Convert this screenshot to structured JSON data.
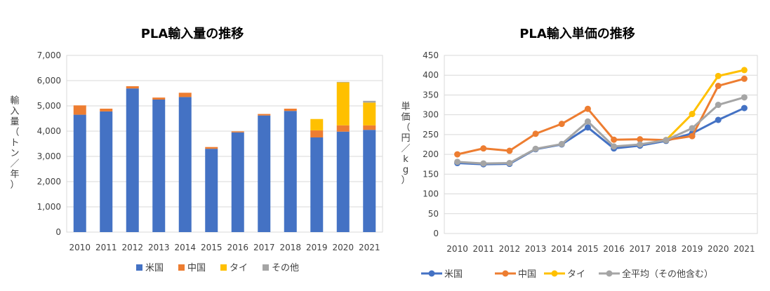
{
  "charts": {
    "left": {
      "type": "bar",
      "title": "PLA輸入量の推移",
      "ylabel": "輸入量（トン／年）",
      "categories": [
        "2010",
        "2011",
        "2012",
        "2013",
        "2014",
        "2015",
        "2016",
        "2017",
        "2018",
        "2019",
        "2020",
        "2021"
      ],
      "ylim": [
        0,
        7000
      ],
      "yticks": [
        "0",
        "1,000",
        "2,000",
        "3,000",
        "4,000",
        "5,000",
        "6,000",
        "7,000"
      ],
      "grid": true,
      "stacked": true,
      "legend_position": "bottom",
      "series": [
        {
          "name": "米国",
          "color": "#4472C4",
          "values": [
            4650,
            4780,
            5690,
            5250,
            5350,
            3300,
            3950,
            4620,
            4800,
            3750,
            3980,
            4050
          ]
        },
        {
          "name": "中国",
          "color": "#ED7D31",
          "values": [
            370,
            110,
            90,
            80,
            170,
            70,
            40,
            60,
            90,
            280,
            250,
            180
          ]
        },
        {
          "name": "タイ",
          "color": "#FFC000",
          "values": [
            0,
            0,
            0,
            0,
            0,
            0,
            0,
            0,
            0,
            450,
            1700,
            900
          ]
        },
        {
          "name": "その他",
          "color": "#A5A5A5",
          "values": [
            0,
            0,
            0,
            0,
            0,
            0,
            0,
            0,
            0,
            0,
            20,
            70
          ]
        }
      ]
    },
    "right": {
      "type": "line",
      "title": "PLA輸入単価の推移",
      "ylabel": "単価（円／kg）",
      "categories": [
        "2010",
        "2011",
        "2012",
        "2013",
        "2014",
        "2015",
        "2016",
        "2017",
        "2018",
        "2019",
        "2020",
        "2021"
      ],
      "ylim": [
        0,
        450
      ],
      "yticks": [
        "0",
        "50",
        "100",
        "150",
        "200",
        "250",
        "300",
        "350",
        "400",
        "450"
      ],
      "grid": true,
      "legend_position": "bottom",
      "series": [
        {
          "name": "米国",
          "color": "#4472C4",
          "values": [
            178,
            175,
            176,
            213,
            225,
            268,
            215,
            222,
            234,
            253,
            287,
            317
          ]
        },
        {
          "name": "中国",
          "color": "#ED7D31",
          "values": [
            200,
            215,
            209,
            252,
            277,
            315,
            237,
            238,
            236,
            246,
            373,
            391
          ]
        },
        {
          "name": "タイ",
          "color": "#FFC000",
          "values": [
            null,
            null,
            null,
            null,
            null,
            null,
            null,
            null,
            236,
            302,
            398,
            413
          ]
        },
        {
          "name": "全平均（その他含む）",
          "color": "#A5A5A5",
          "values": [
            181,
            177,
            178,
            214,
            226,
            283,
            220,
            225,
            236,
            266,
            325,
            344
          ]
        }
      ]
    }
  }
}
